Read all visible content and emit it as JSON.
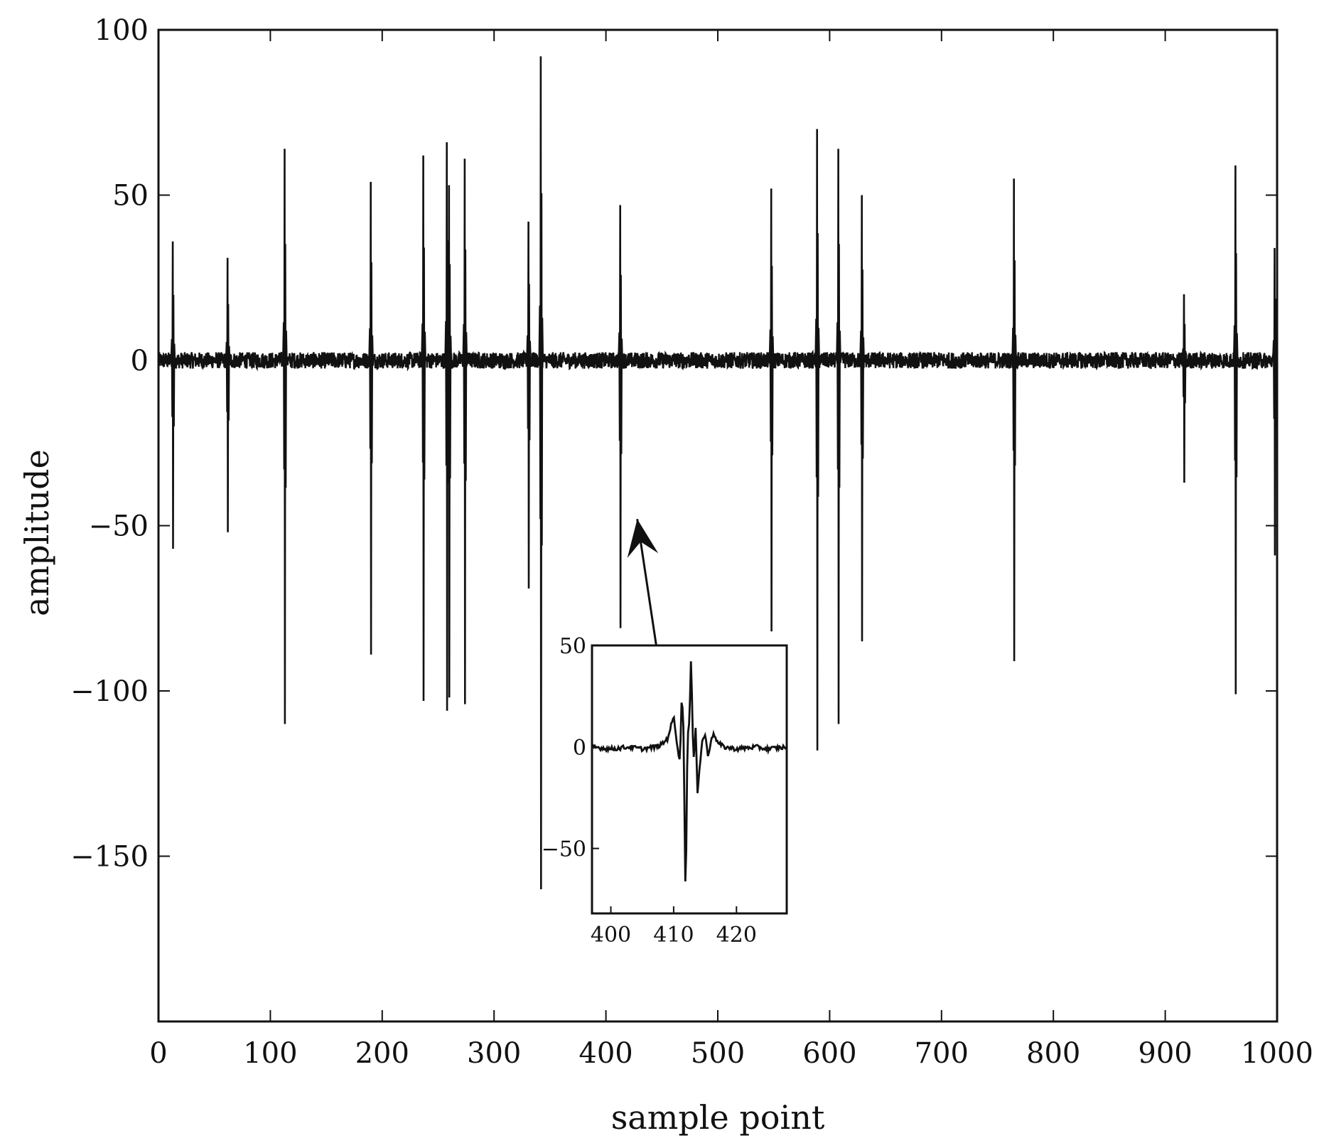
{
  "chart_data": {
    "type": "line",
    "title": "",
    "xlabel": "sample point",
    "ylabel": "amplitude",
    "xlim": [
      0,
      1000
    ],
    "ylim": [
      -200,
      100
    ],
    "xticks": [
      0,
      100,
      200,
      300,
      400,
      500,
      600,
      700,
      800,
      900,
      1000
    ],
    "yticks": [
      100,
      50,
      0,
      -50,
      -100,
      -150
    ],
    "ytick_labels": [
      "100",
      "50",
      "0",
      "−50",
      "−100",
      "−150"
    ],
    "grid": false,
    "color": "#111111",
    "noise_amplitude": 2.5,
    "spikes": [
      {
        "x": 13,
        "max": 36,
        "min": -57
      },
      {
        "x": 62,
        "max": 31,
        "min": -52
      },
      {
        "x": 113,
        "max": 64,
        "min": -110
      },
      {
        "x": 190,
        "max": 54,
        "min": -89
      },
      {
        "x": 237,
        "max": 62,
        "min": -103
      },
      {
        "x": 258,
        "max": 66,
        "min": -106
      },
      {
        "x": 260,
        "max": 53,
        "min": -102
      },
      {
        "x": 274,
        "max": 61,
        "min": -104
      },
      {
        "x": 331,
        "max": 42,
        "min": -69
      },
      {
        "x": 342,
        "max": 92,
        "min": -160
      },
      {
        "x": 413,
        "max": 47,
        "min": -81
      },
      {
        "x": 548,
        "max": 52,
        "min": -82
      },
      {
        "x": 589,
        "max": 70,
        "min": -118
      },
      {
        "x": 608,
        "max": 64,
        "min": -110
      },
      {
        "x": 629,
        "max": 50,
        "min": -85
      },
      {
        "x": 765,
        "max": 55,
        "min": -91
      },
      {
        "x": 917,
        "max": 20,
        "min": -37
      },
      {
        "x": 963,
        "max": 59,
        "min": -101
      },
      {
        "x": 998,
        "max": 34,
        "min": -59
      }
    ],
    "inset": {
      "type": "line",
      "xlim": [
        397,
        428
      ],
      "ylim": [
        -82,
        50
      ],
      "xticks": [
        400,
        410,
        420
      ],
      "yticks": [
        50,
        0,
        -50
      ],
      "ytick_labels": [
        "50",
        "0",
        "−50"
      ],
      "x": [
        397,
        400,
        403,
        405,
        407,
        408,
        409,
        410,
        410.5,
        411,
        411.3,
        411.6,
        411.9,
        412.2,
        412.5,
        412.8,
        413,
        413.2,
        413.5,
        413.8,
        414.2,
        414.6,
        415,
        415.5,
        416,
        416.5,
        417,
        418,
        420,
        423,
        425,
        428
      ],
      "y": [
        0,
        -1,
        0,
        -1,
        0,
        1,
        4,
        15,
        3,
        -8,
        28,
        5,
        -80,
        5,
        12,
        47,
        8,
        -6,
        10,
        -22,
        -8,
        4,
        6,
        -5,
        5,
        6,
        2,
        0,
        -1,
        0,
        -1,
        0
      ]
    },
    "annotation": {
      "type": "arrow",
      "from": "inset",
      "to": [
        428,
        -48
      ]
    }
  }
}
